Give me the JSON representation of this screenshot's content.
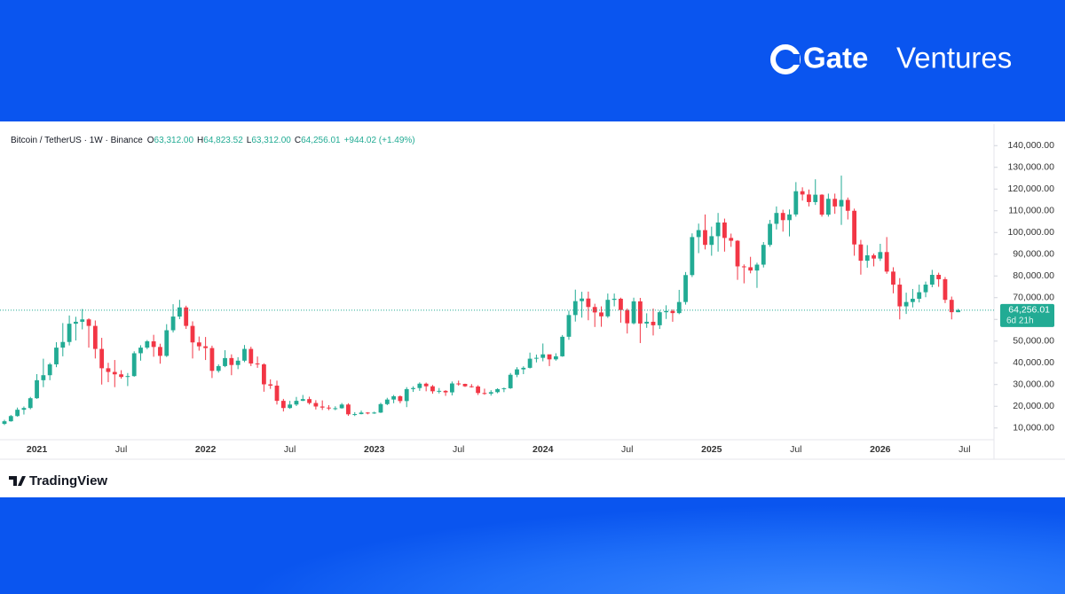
{
  "brand": {
    "name": "Gate",
    "suffix": "Ventures"
  },
  "footer_brand": "TradingView",
  "chart_data": {
    "type": "candlestick",
    "symbol": "Bitcoin / TetherUS · 1W · Binance",
    "header_items": [
      {
        "key": "O",
        "value": "63,312.00"
      },
      {
        "key": "H",
        "value": "64,823.52"
      },
      {
        "key": "L",
        "value": "63,312.00"
      },
      {
        "key": "C",
        "value": "64,256.01"
      }
    ],
    "change": "+944.02 (+1.49%)",
    "up_color": "#22ab94",
    "down_color": "#f23645",
    "grid": false,
    "last_price": {
      "value": 64256.01,
      "label": "64,256.01"
    },
    "countdown": "6d 21h",
    "ylim": [
      5000,
      145000
    ],
    "yticks": [
      {
        "value": 10000,
        "label": "10,000.00"
      },
      {
        "value": 20000,
        "label": "20,000.00"
      },
      {
        "value": 30000,
        "label": "30,000.00"
      },
      {
        "value": 40000,
        "label": "40,000.00"
      },
      {
        "value": 50000,
        "label": "50,000.00"
      },
      {
        "value": 60000,
        "label": "60,000.00"
      },
      {
        "value": 70000,
        "label": "70,000.00"
      },
      {
        "value": 80000,
        "label": "80,000.00"
      },
      {
        "value": 90000,
        "label": "90,000.00"
      },
      {
        "value": 100000,
        "label": "100,000.00"
      },
      {
        "value": 110000,
        "label": "110,000.00"
      },
      {
        "value": 120000,
        "label": "120,000.00"
      },
      {
        "value": 130000,
        "label": "130,000.00"
      },
      {
        "value": 140000,
        "label": "140,000.00"
      }
    ],
    "categories": [
      null,
      null,
      null,
      null,
      null,
      "2021",
      null,
      null,
      null,
      null,
      null,
      null,
      null,
      null,
      null,
      null,
      null,
      null,
      "Jul",
      null,
      null,
      null,
      null,
      null,
      null,
      null,
      null,
      null,
      null,
      null,
      null,
      "2022",
      null,
      null,
      null,
      null,
      null,
      null,
      null,
      null,
      null,
      null,
      null,
      null,
      "Jul",
      null,
      null,
      null,
      null,
      null,
      null,
      null,
      null,
      null,
      null,
      null,
      null,
      "2023",
      null,
      null,
      null,
      null,
      null,
      null,
      null,
      null,
      null,
      null,
      null,
      null,
      "Jul",
      null,
      null,
      null,
      null,
      null,
      null,
      null,
      null,
      null,
      null,
      null,
      null,
      "2024",
      null,
      null,
      null,
      null,
      null,
      null,
      null,
      null,
      null,
      null,
      null,
      null,
      "Jul",
      null,
      null,
      null,
      null,
      null,
      null,
      null,
      null,
      null,
      null,
      null,
      null,
      "2025",
      null,
      null,
      null,
      null,
      null,
      null,
      null,
      null,
      null,
      null,
      null,
      null,
      "Jul",
      null,
      null,
      null,
      null,
      null,
      null,
      null,
      null,
      null,
      null,
      null,
      null,
      "2026",
      null,
      null,
      null,
      null,
      null,
      null,
      null,
      null,
      null,
      null,
      null,
      null,
      "Jul"
    ],
    "open": [
      11900,
      13100,
      15500,
      18400,
      19200,
      23700,
      32000,
      34300,
      39300,
      47000,
      49600,
      58000,
      58900,
      60000,
      57000,
      46400,
      37500,
      35800,
      34700,
      33500,
      33900,
      44400,
      47000,
      49900,
      47300,
      43200,
      55000,
      61300,
      65500,
      57000,
      49400,
      47600,
      46800,
      36300,
      38500,
      42200,
      39000,
      41000,
      46400,
      39700,
      39300,
      30100,
      29500,
      22500,
      19200,
      20800,
      22500,
      23300,
      21500,
      19900,
      19400,
      19000,
      19100,
      20800,
      16300,
      16400,
      17100,
      16800,
      17100,
      21000,
      23100,
      24600,
      22400,
      27900,
      28400,
      30400,
      29200,
      26900,
      27100,
      26400,
      30500,
      30300,
      29200,
      29100,
      26100,
      25800,
      26500,
      27900,
      28300,
      34500,
      37000,
      37700,
      41900,
      42300,
      43900,
      41600,
      43000,
      52000,
      62000,
      68400,
      69600,
      65700,
      63200,
      61400,
      69000,
      69500,
      64300,
      58200,
      68300,
      58100,
      58900,
      57300,
      63300,
      63900,
      62900,
      68000,
      80400,
      97900,
      101100,
      94300,
      98300,
      104600,
      97500,
      96200,
      84400,
      84000,
      82500,
      85200,
      94300,
      104000,
      109000,
      105700,
      108300,
      119000,
      117500,
      114000,
      117400,
      108200,
      115500,
      112000,
      115000,
      110000,
      94500,
      87000,
      89500,
      88000,
      91000,
      82000,
      76000,
      66000,
      68000,
      69500,
      72500,
      76000,
      80500,
      78500,
      69000,
      63312,
      null
    ],
    "high": [
      13800,
      16000,
      19400,
      19900,
      24300,
      34800,
      41900,
      40000,
      49500,
      58300,
      61800,
      61200,
      64800,
      60500,
      59500,
      51500,
      40000,
      41300,
      36600,
      35300,
      45300,
      48100,
      50500,
      52900,
      48800,
      57800,
      67000,
      69000,
      66300,
      59100,
      52100,
      51900,
      47900,
      39300,
      45800,
      43900,
      42600,
      48200,
      47400,
      42900,
      39800,
      32400,
      31800,
      23400,
      22500,
      24300,
      25200,
      24400,
      22800,
      22700,
      20500,
      20000,
      21500,
      21400,
      17300,
      18000,
      17300,
      17500,
      21600,
      23900,
      25200,
      25000,
      28800,
      29200,
      31000,
      30900,
      29800,
      28400,
      27400,
      31400,
      31800,
      30400,
      30200,
      29700,
      28100,
      27400,
      28300,
      28600,
      35300,
      38000,
      38400,
      44700,
      43800,
      48900,
      43600,
      44400,
      52800,
      64000,
      73700,
      72700,
      72800,
      67200,
      66000,
      71900,
      71900,
      70000,
      65000,
      70000,
      69900,
      62800,
      65000,
      64100,
      66500,
      64600,
      73600,
      81800,
      99600,
      104100,
      108300,
      102700,
      109000,
      106400,
      99500,
      96500,
      85300,
      88800,
      86100,
      95600,
      105800,
      112000,
      110500,
      110600,
      123200,
      120800,
      119800,
      124500,
      117600,
      117900,
      117900,
      126200,
      116100,
      111000,
      96600,
      94200,
      90300,
      94800,
      97900,
      84000,
      79000,
      72300,
      74000,
      76000,
      77400,
      82800,
      81500,
      79500,
      70500,
      64823.52,
      null
    ],
    "low": [
      11400,
      12900,
      15200,
      16200,
      18600,
      23400,
      28800,
      32000,
      38000,
      43000,
      48000,
      50300,
      55400,
      47000,
      42000,
      30000,
      31100,
      28800,
      32700,
      29300,
      33600,
      41000,
      46300,
      42800,
      39600,
      42700,
      54000,
      60100,
      55600,
      42000,
      45600,
      41300,
      33000,
      35500,
      38000,
      34300,
      37100,
      40300,
      38500,
      37700,
      26700,
      28000,
      20800,
      17600,
      18800,
      20100,
      22400,
      20800,
      18500,
      18300,
      18200,
      18200,
      18900,
      15600,
      15500,
      16300,
      16300,
      16500,
      16900,
      20500,
      21400,
      21400,
      19600,
      26600,
      27100,
      26900,
      25800,
      25900,
      24800,
      25000,
      29500,
      28900,
      28600,
      25200,
      25300,
      24900,
      26000,
      26500,
      28000,
      33400,
      34800,
      37400,
      40200,
      40700,
      38500,
      41000,
      42800,
      50600,
      59000,
      60800,
      59600,
      56500,
      56600,
      60700,
      66000,
      58500,
      53500,
      57700,
      49100,
      56100,
      52600,
      55600,
      60200,
      58900,
      62400,
      66800,
      79500,
      90500,
      92200,
      89300,
      91200,
      91200,
      93400,
      78200,
      76600,
      81200,
      74500,
      83900,
      93400,
      101400,
      100400,
      98200,
      107300,
      114700,
      112000,
      112700,
      107300,
      107300,
      108600,
      103500,
      106000,
      89300,
      80600,
      83800,
      84400,
      86900,
      81000,
      72000,
      60000,
      62500,
      65500,
      67800,
      70200,
      74800,
      75000,
      67500,
      60000,
      63312,
      null
    ],
    "close": [
      13100,
      15500,
      18400,
      19200,
      23700,
      32000,
      34300,
      39300,
      47000,
      49600,
      58000,
      58900,
      60000,
      57000,
      46400,
      37500,
      35800,
      34700,
      33500,
      33900,
      44400,
      47000,
      49900,
      47300,
      43200,
      55000,
      61300,
      65500,
      57000,
      49400,
      47600,
      46800,
      36300,
      38500,
      42200,
      39000,
      41000,
      46400,
      39700,
      39300,
      30100,
      29500,
      22500,
      19200,
      20800,
      22500,
      23300,
      21500,
      19900,
      19400,
      19000,
      19100,
      20800,
      16300,
      16400,
      17100,
      16800,
      17100,
      21000,
      23100,
      24600,
      22400,
      27900,
      28400,
      30400,
      29200,
      26900,
      27100,
      26400,
      30500,
      30300,
      29200,
      29100,
      26100,
      25800,
      26500,
      27900,
      28300,
      34500,
      37000,
      37700,
      41900,
      42300,
      43900,
      41600,
      43000,
      52000,
      62000,
      68400,
      69600,
      65700,
      63200,
      61400,
      69000,
      69500,
      64300,
      58200,
      68300,
      58100,
      58900,
      57300,
      63300,
      63900,
      62900,
      68000,
      80400,
      97900,
      101100,
      94300,
      98300,
      104600,
      97500,
      96200,
      84400,
      84000,
      82500,
      85200,
      94300,
      104000,
      109000,
      105700,
      108300,
      119000,
      117500,
      114000,
      117400,
      108200,
      115500,
      112000,
      115000,
      110000,
      94500,
      87000,
      89500,
      88000,
      91000,
      82000,
      76000,
      66000,
      68000,
      69500,
      72500,
      76000,
      80500,
      78500,
      69000,
      63312,
      64256.01,
      null
    ]
  }
}
